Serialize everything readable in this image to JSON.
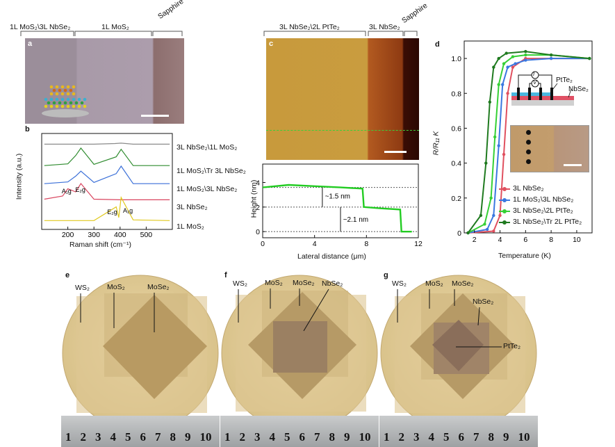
{
  "panels": {
    "a": {
      "letter": "a",
      "labels": [
        "1L MoS₂\\3L NbSe₂",
        "1L MoS₂",
        "Sapphire"
      ]
    },
    "b": {
      "letter": "b",
      "xlabel": "Raman shift (cm⁻¹)",
      "ylabel": "Intensity (a.u.)",
      "xticks": [
        "200",
        "300",
        "400",
        "500"
      ],
      "peak_labels": [
        "A₁g",
        "E₂g",
        "E₂g",
        "A₁g"
      ],
      "series": [
        {
          "name": "3L NbSe₂\\1L MoS₂",
          "color": "#8a8a8a"
        },
        {
          "name": "1L MoS₂\\Tr 3L NbSe₂",
          "color": "#2e8b2e"
        },
        {
          "name": "1L MoS₂\\3L NbSe₂",
          "color": "#3a6fd8"
        },
        {
          "name": "3L NbSe₂",
          "color": "#d9455f"
        },
        {
          "name": "1L MoS₂",
          "color": "#e0c81c"
        }
      ]
    },
    "c": {
      "letter": "c",
      "labels": [
        "3L NbSe₂\\2L PtTe₂",
        "3L NbSe₂",
        "Sapphire"
      ],
      "xlabel": "Lateral distance (μm)",
      "ylabel": "Height (nm)",
      "xticks": [
        "0",
        "4",
        "8",
        "12"
      ],
      "yticks": [
        "0",
        "2",
        "4"
      ],
      "annotations": [
        "~1.5 nm",
        "~2.1 nm"
      ]
    },
    "d": {
      "letter": "d",
      "xlabel": "Temperature (K)",
      "ylabel": "R/R₁₁ K",
      "xticks": [
        "2",
        "4",
        "6",
        "8",
        "10"
      ],
      "yticks": [
        "0",
        "0.2",
        "0.4",
        "0.6",
        "0.8",
        "1.0"
      ],
      "inset_labels": [
        "I",
        "V",
        "PtTe₂",
        "NbSe₂"
      ],
      "series": [
        {
          "name": "3L NbSe₂",
          "color": "#e0505f"
        },
        {
          "name": "1L MoS₂\\3L NbSe₂",
          "color": "#3a78e0"
        },
        {
          "name": "3L NbSe₂\\2L PtTe₂",
          "color": "#35d035"
        },
        {
          "name": "3L NbSe₂\\Tr 2L PtTe₂",
          "color": "#1f7a1f"
        }
      ]
    },
    "e": {
      "letter": "e",
      "labels": [
        "WS₂",
        "MoS₂",
        "MoSe₂"
      ],
      "ruler": [
        "1",
        "2",
        "3",
        "4",
        "5",
        "6",
        "7",
        "8",
        "9",
        "10"
      ]
    },
    "f": {
      "letter": "f",
      "labels": [
        "WS₂",
        "MoS₂",
        "MoSe₂",
        "NbSe₂"
      ],
      "ruler": [
        "1",
        "2",
        "3",
        "4",
        "5",
        "6",
        "7",
        "8",
        "9",
        "10"
      ]
    },
    "g": {
      "letter": "g",
      "labels": [
        "WS₂",
        "MoS₂",
        "MoSe₂",
        "NbSe₂",
        "PtTe₂"
      ],
      "ruler": [
        "1",
        "2",
        "3",
        "4",
        "5",
        "6",
        "7",
        "8",
        "9",
        "10"
      ]
    }
  },
  "chart_data": [
    {
      "type": "line",
      "panel": "b",
      "xlabel": "Raman shift (cm⁻¹)",
      "ylabel": "Intensity (a.u.)",
      "xlim": [
        100,
        600
      ],
      "peaks": {
        "E2g_NbSe2": 240,
        "A1g_NbSe2": 230,
        "E2g_MoS2": 385,
        "A1g_MoS2": 404
      },
      "series": [
        {
          "name": "3L NbSe₂\\1L MoS₂",
          "x": [
            110,
            200,
            300,
            380,
            404,
            450,
            590
          ],
          "y": [
            0.02,
            0.02,
            0.02,
            0.05,
            0.07,
            0.02,
            0.02
          ]
        },
        {
          "name": "1L MoS₂\\Tr 3L NbSe₂",
          "x": [
            110,
            200,
            230,
            250,
            300,
            385,
            404,
            450,
            590
          ],
          "y": [
            0.05,
            0.12,
            0.45,
            0.75,
            0.1,
            0.4,
            0.7,
            0.05,
            0.05
          ]
        },
        {
          "name": "1L MoS₂\\3L NbSe₂",
          "x": [
            110,
            200,
            230,
            250,
            300,
            385,
            404,
            450,
            590
          ],
          "y": [
            0.05,
            0.12,
            0.35,
            0.55,
            0.1,
            0.45,
            0.75,
            0.05,
            0.05
          ]
        },
        {
          "name": "3L NbSe₂",
          "x": [
            110,
            180,
            200,
            230,
            250,
            300,
            400,
            590
          ],
          "y": [
            0.05,
            0.2,
            0.55,
            0.4,
            0.8,
            0.05,
            0.02,
            0.02
          ]
        },
        {
          "name": "1L MoS₂",
          "x": [
            110,
            300,
            385,
            395,
            404,
            450,
            590
          ],
          "y": [
            0.02,
            0.02,
            0.6,
            0.15,
            1.0,
            0.05,
            0.02
          ]
        }
      ]
    },
    {
      "type": "line",
      "panel": "c",
      "xlabel": "Lateral distance (μm)",
      "ylabel": "Height (nm)",
      "xlim": [
        0,
        12
      ],
      "ylim": [
        -0.5,
        5.5
      ],
      "series": [
        {
          "name": "height profile",
          "x": [
            0,
            2,
            4,
            6,
            7.7,
            7.8,
            9,
            10.6,
            10.7,
            11.5
          ],
          "y": [
            3.6,
            3.8,
            3.7,
            3.6,
            3.5,
            2.0,
            1.9,
            1.8,
            0.0,
            0.0
          ]
        }
      ]
    },
    {
      "type": "line",
      "panel": "d",
      "xlabel": "Temperature (K)",
      "ylabel": "R/R₁₁ K",
      "xlim": [
        1.2,
        11.2
      ],
      "ylim": [
        0,
        1.1
      ],
      "series": [
        {
          "name": "3L NbSe₂",
          "x": [
            1.5,
            3.5,
            4.0,
            4.3,
            4.6,
            5.0,
            6,
            8,
            11
          ],
          "y": [
            0,
            0.01,
            0.1,
            0.45,
            0.8,
            0.95,
            1.0,
            1.0,
            1.0
          ]
        },
        {
          "name": "1L MoS₂\\3L NbSe₂",
          "x": [
            1.5,
            3.0,
            3.5,
            3.9,
            4.2,
            4.6,
            5.2,
            6,
            8,
            11
          ],
          "y": [
            0,
            0.02,
            0.1,
            0.5,
            0.85,
            0.95,
            0.97,
            0.99,
            1.0,
            1.0
          ]
        },
        {
          "name": "3L NbSe₂\\2L PtTe₂",
          "x": [
            1.5,
            2.8,
            3.3,
            3.6,
            3.9,
            4.3,
            5,
            6,
            8,
            11
          ],
          "y": [
            0,
            0.05,
            0.2,
            0.55,
            0.85,
            0.97,
            1.01,
            1.02,
            1.02,
            1.0
          ]
        },
        {
          "name": "3L NbSe₂\\Tr 2L PtTe₂",
          "x": [
            1.5,
            2.5,
            2.9,
            3.2,
            3.5,
            3.9,
            4.5,
            6,
            8,
            11
          ],
          "y": [
            0,
            0.1,
            0.4,
            0.75,
            0.95,
            1.0,
            1.03,
            1.04,
            1.02,
            1.0
          ]
        }
      ]
    }
  ]
}
